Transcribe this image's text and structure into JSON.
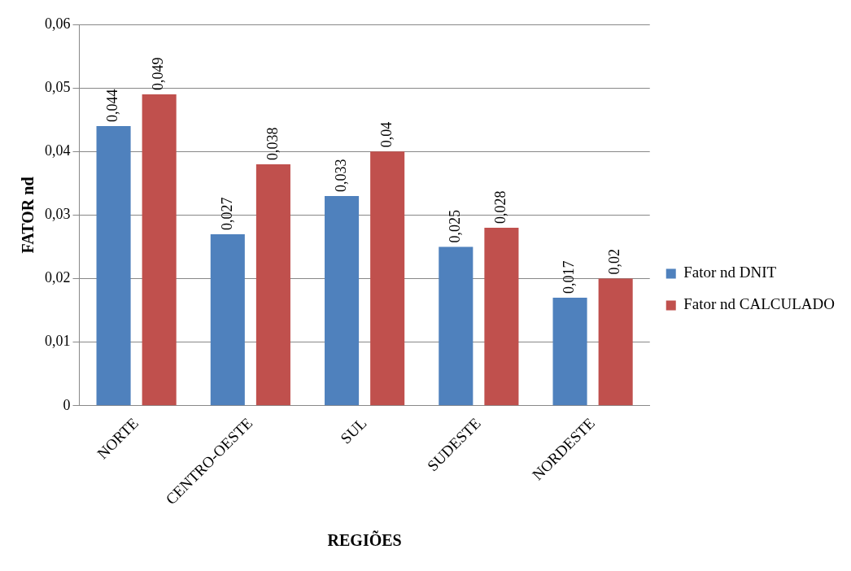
{
  "chart_data": {
    "type": "bar",
    "xlabel": "REGIÕES",
    "ylabel": "FATOR nd",
    "categories": [
      "NORTE",
      "CENTRO-OESTE",
      "SUL",
      "SUDESTE",
      "NORDESTE"
    ],
    "series": [
      {
        "name": "Fator nd DNIT",
        "color": "#4f81bd",
        "values": [
          0.044,
          0.027,
          0.033,
          0.025,
          0.017
        ],
        "value_labels": [
          "0,044",
          "0,027",
          "0,033",
          "0,025",
          "0,017"
        ]
      },
      {
        "name": "Fator nd CALCULADO",
        "color": "#c0504d",
        "values": [
          0.049,
          0.038,
          0.04,
          0.028,
          0.02
        ],
        "value_labels": [
          "0,049",
          "0,038",
          "0,04",
          "0,028",
          "0,02"
        ]
      }
    ],
    "ylim": [
      0,
      0.06
    ],
    "yticks": [
      {
        "value": 0,
        "label": "0"
      },
      {
        "value": 0.01,
        "label": "0,01"
      },
      {
        "value": 0.02,
        "label": "0,02"
      },
      {
        "value": 0.03,
        "label": "0,03"
      },
      {
        "value": 0.04,
        "label": "0,04"
      },
      {
        "value": 0.05,
        "label": "0,05"
      },
      {
        "value": 0.06,
        "label": "0,06"
      }
    ],
    "grid": "y",
    "legend": "right"
  }
}
